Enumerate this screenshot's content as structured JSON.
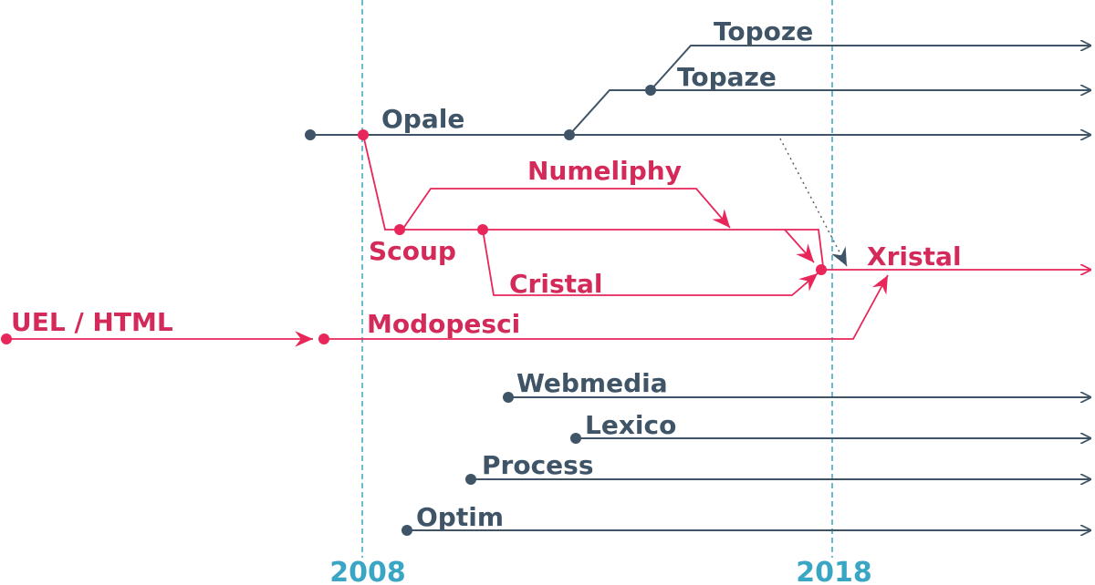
{
  "colors": {
    "dark": "#3f5466",
    "pink": "#e8265a",
    "blue": "#3aa6c4",
    "dotted": "#555555"
  },
  "years": [
    "2008",
    "2018"
  ],
  "labels": {
    "topoze": "Topoze",
    "topaze": "Topaze",
    "opale": "Opale",
    "numeliphy": "Numeliphy",
    "scoup": "Scoup",
    "cristal": "Cristal",
    "xristal": "Xristal",
    "uel_html": "UEL / HTML",
    "modopesci": "Modopesci",
    "webmedia": "Webmedia",
    "lexico": "Lexico",
    "process": "Process",
    "optim": "Optim"
  }
}
